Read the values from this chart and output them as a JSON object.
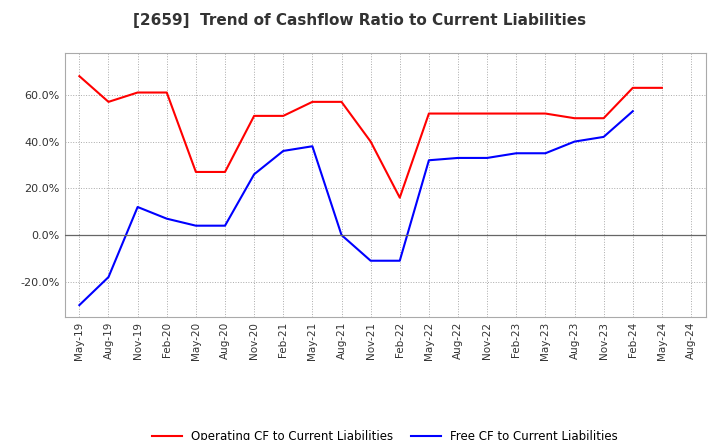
{
  "title": "[2659]  Trend of Cashflow Ratio to Current Liabilities",
  "x_labels": [
    "May-19",
    "Aug-19",
    "Nov-19",
    "Feb-20",
    "May-20",
    "Aug-20",
    "Nov-20",
    "Feb-21",
    "May-21",
    "Aug-21",
    "Nov-21",
    "Feb-22",
    "May-22",
    "Aug-22",
    "Nov-22",
    "Feb-23",
    "May-23",
    "Aug-23",
    "Nov-23",
    "Feb-24",
    "May-24",
    "Aug-24"
  ],
  "operating_cf": [
    0.68,
    0.57,
    0.61,
    0.61,
    0.27,
    0.27,
    0.51,
    0.51,
    0.57,
    0.57,
    0.4,
    0.16,
    0.52,
    0.52,
    0.52,
    0.52,
    0.52,
    0.5,
    0.5,
    0.63,
    0.63,
    null
  ],
  "free_cf": [
    -0.3,
    -0.18,
    0.12,
    0.07,
    0.04,
    0.04,
    0.26,
    0.36,
    0.38,
    0.0,
    -0.11,
    -0.11,
    0.32,
    0.33,
    0.33,
    0.35,
    0.35,
    0.4,
    0.42,
    0.53,
    null,
    null
  ],
  "operating_cf_color": "#ff0000",
  "free_cf_color": "#0000ff",
  "ylim": [
    -0.35,
    0.78
  ],
  "yticks": [
    -0.2,
    0.0,
    0.2,
    0.4,
    0.6
  ],
  "ytick_labels": [
    "-20.0%",
    "0.0%",
    "20.0%",
    "40.0%",
    "60.0%"
  ],
  "background_color": "#ffffff",
  "grid_color": "#aaaaaa",
  "title_fontsize": 11,
  "title_fontweight": "bold",
  "tick_fontsize": 7.5,
  "legend_fontsize": 8.5,
  "legend_labels": [
    "Operating CF to Current Liabilities",
    "Free CF to Current Liabilities"
  ]
}
